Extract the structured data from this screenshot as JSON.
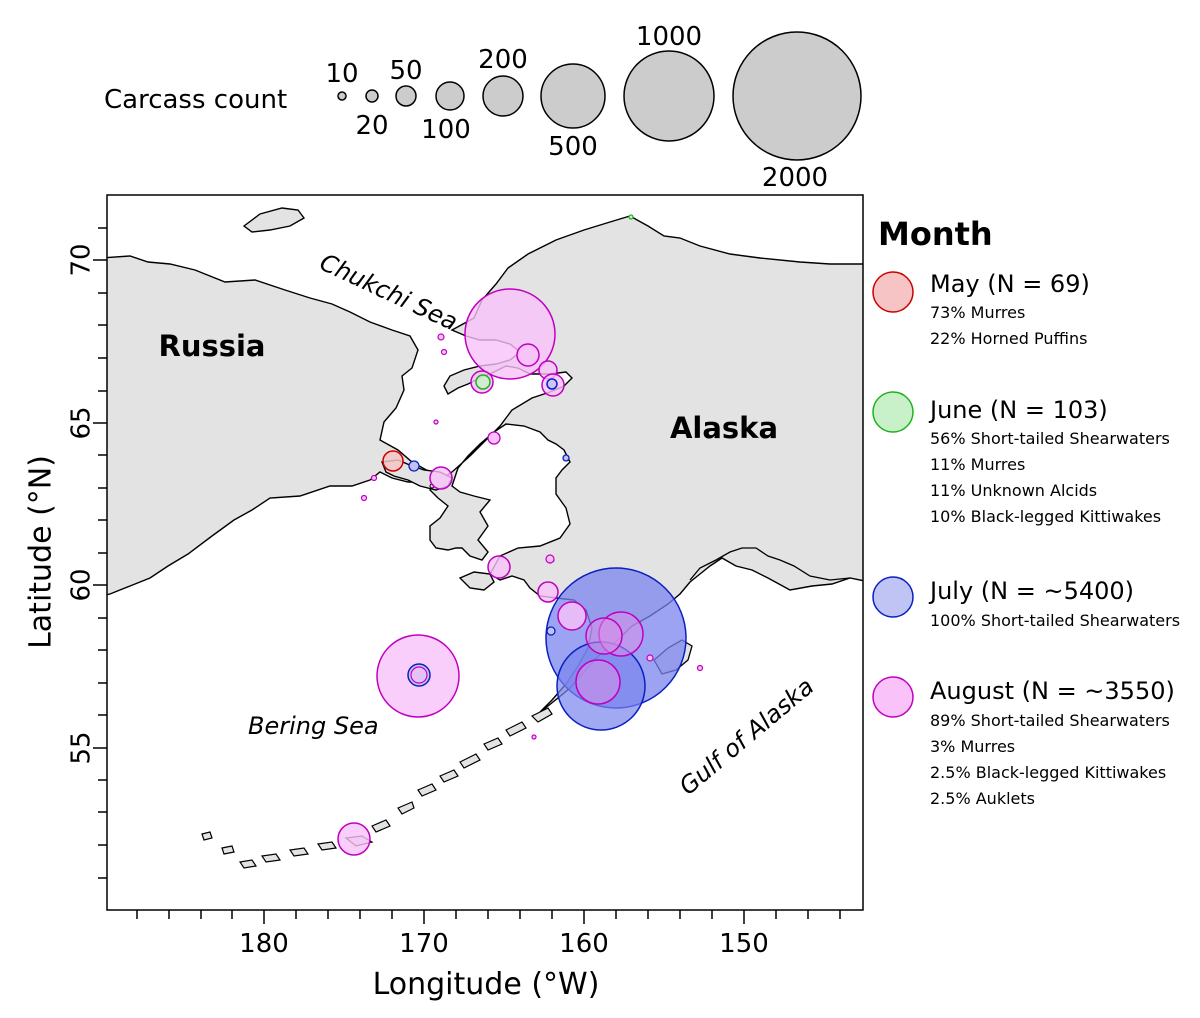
{
  "size_legend": {
    "title": "Carcass count",
    "sizes": [
      {
        "label": "10",
        "value": 10
      },
      {
        "label": "20",
        "value": 20
      },
      {
        "label": "50",
        "value": 50
      },
      {
        "label": "100",
        "value": 100
      },
      {
        "label": "200",
        "value": 200
      },
      {
        "label": "500",
        "value": 500
      },
      {
        "label": "1000",
        "value": 1000
      },
      {
        "label": "2000",
        "value": 2000
      }
    ],
    "fill": "#cccccc"
  },
  "map": {
    "x_axis": {
      "title": "Longitude (°W)",
      "ticks": [
        "180",
        "170",
        "160",
        "150"
      ]
    },
    "y_axis": {
      "title": "Latitude (°N)",
      "ticks": [
        "70",
        "65",
        "60",
        "55"
      ]
    },
    "labels": {
      "russia": "Russia",
      "alaska": "Alaska",
      "chukchi": "Chukchi Sea",
      "bering": "Bering Sea",
      "gulf": "Gulf of Alaska"
    },
    "land_fill": "#e3e3e3"
  },
  "legend": {
    "title": "Month",
    "months": [
      {
        "label": "May (N = 69)",
        "stroke": "#cc0000",
        "fill": "#f6c4c4",
        "lines": [
          "73% Murres",
          "22% Horned Puffins"
        ]
      },
      {
        "label": "June (N = 103)",
        "stroke": "#1fb11f",
        "fill": "#c9f1c9",
        "lines": [
          "56% Short-tailed Shearwaters",
          "11% Murres",
          "11% Unknown Alcids",
          "10% Black-legged Kittiwakes"
        ]
      },
      {
        "label": "July (N = ~5400)",
        "stroke": "#0a1fc0",
        "fill": "#bfc4f4",
        "lines": [
          "100% Short-tailed Shearwaters"
        ]
      },
      {
        "label": "August (N = ~3550)",
        "stroke": "#c000c0",
        "fill": "#f9c2f9",
        "lines": [
          "89% Short-tailed Shearwaters",
          "3% Murres",
          "2.5% Black-legged Kittiwakes",
          "2.5% Auklets"
        ]
      }
    ]
  }
}
